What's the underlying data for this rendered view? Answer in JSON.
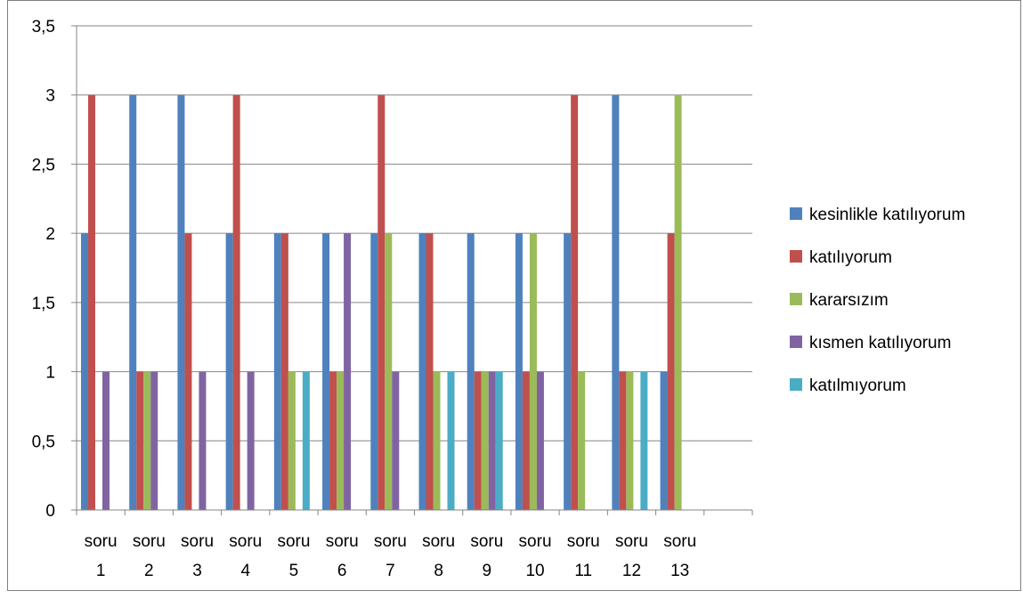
{
  "chart_data": {
    "type": "bar",
    "title": "",
    "xlabel": "",
    "ylabel": "",
    "ylim": [
      0,
      3.5
    ],
    "yticks": [
      "0",
      "0,5",
      "1",
      "1,5",
      "2",
      "2,5",
      "3",
      "3,5"
    ],
    "grid": true,
    "legend_position": "right",
    "categories": [
      [
        "soru",
        "1"
      ],
      [
        "soru",
        "2"
      ],
      [
        "soru",
        "3"
      ],
      [
        "soru",
        "4"
      ],
      [
        "soru",
        "5"
      ],
      [
        "soru",
        "6"
      ],
      [
        "soru",
        "7"
      ],
      [
        "soru",
        "8"
      ],
      [
        "soru",
        "9"
      ],
      [
        "soru",
        "10"
      ],
      [
        "soru",
        "11"
      ],
      [
        "soru",
        "12"
      ],
      [
        "soru",
        "13"
      ]
    ],
    "series": [
      {
        "name": "kesinlikle katılıyorum",
        "color": "#4f81bd",
        "values": [
          2,
          3,
          3,
          2,
          2,
          2,
          2,
          2,
          2,
          2,
          2,
          3,
          1
        ]
      },
      {
        "name": "katılıyorum",
        "color": "#c0504d",
        "values": [
          3,
          1,
          2,
          3,
          2,
          1,
          3,
          2,
          1,
          1,
          3,
          1,
          2
        ]
      },
      {
        "name": "kararsızım",
        "color": "#9bbb59",
        "values": [
          0,
          1,
          0,
          0,
          1,
          1,
          2,
          1,
          1,
          2,
          1,
          1,
          3
        ]
      },
      {
        "name": "kısmen katılıyorum",
        "color": "#8064a2",
        "values": [
          1,
          1,
          1,
          1,
          0,
          2,
          1,
          0,
          1,
          1,
          0,
          0,
          0
        ]
      },
      {
        "name": "katılmıyorum",
        "color": "#4bacc6",
        "values": [
          0,
          0,
          0,
          0,
          1,
          0,
          0,
          1,
          1,
          0,
          0,
          1,
          0
        ]
      }
    ]
  }
}
